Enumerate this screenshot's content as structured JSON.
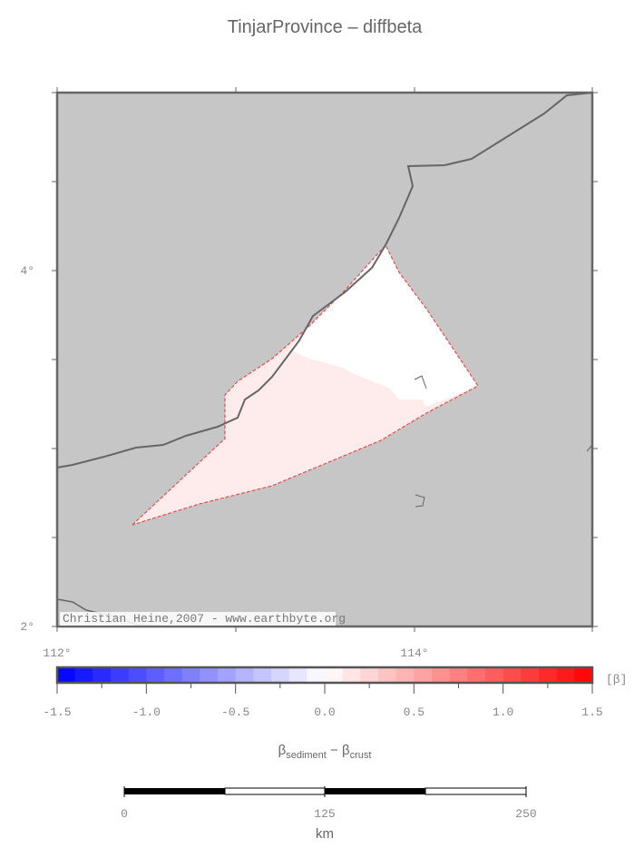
{
  "title": "TinjarProvince – diffbeta",
  "map": {
    "lat_labels": [
      "4°",
      "2°"
    ],
    "lon_labels": [
      "112°",
      "114°"
    ],
    "credit": "Christian Heine,2007 - www.earthbyte.org"
  },
  "colorbar": {
    "ticks": [
      "-1.5",
      "-1.0",
      "-0.5",
      "0.0",
      "0.5",
      "1.0",
      "1.5"
    ],
    "unit": "[β]",
    "label": {
      "beta1": "β",
      "sub1": "sediment",
      "minus": " − ",
      "beta2": "β",
      "sub2": "crust"
    }
  },
  "scale_bar": {
    "ticks": [
      "0",
      "125",
      "250"
    ],
    "unit": "km"
  }
}
